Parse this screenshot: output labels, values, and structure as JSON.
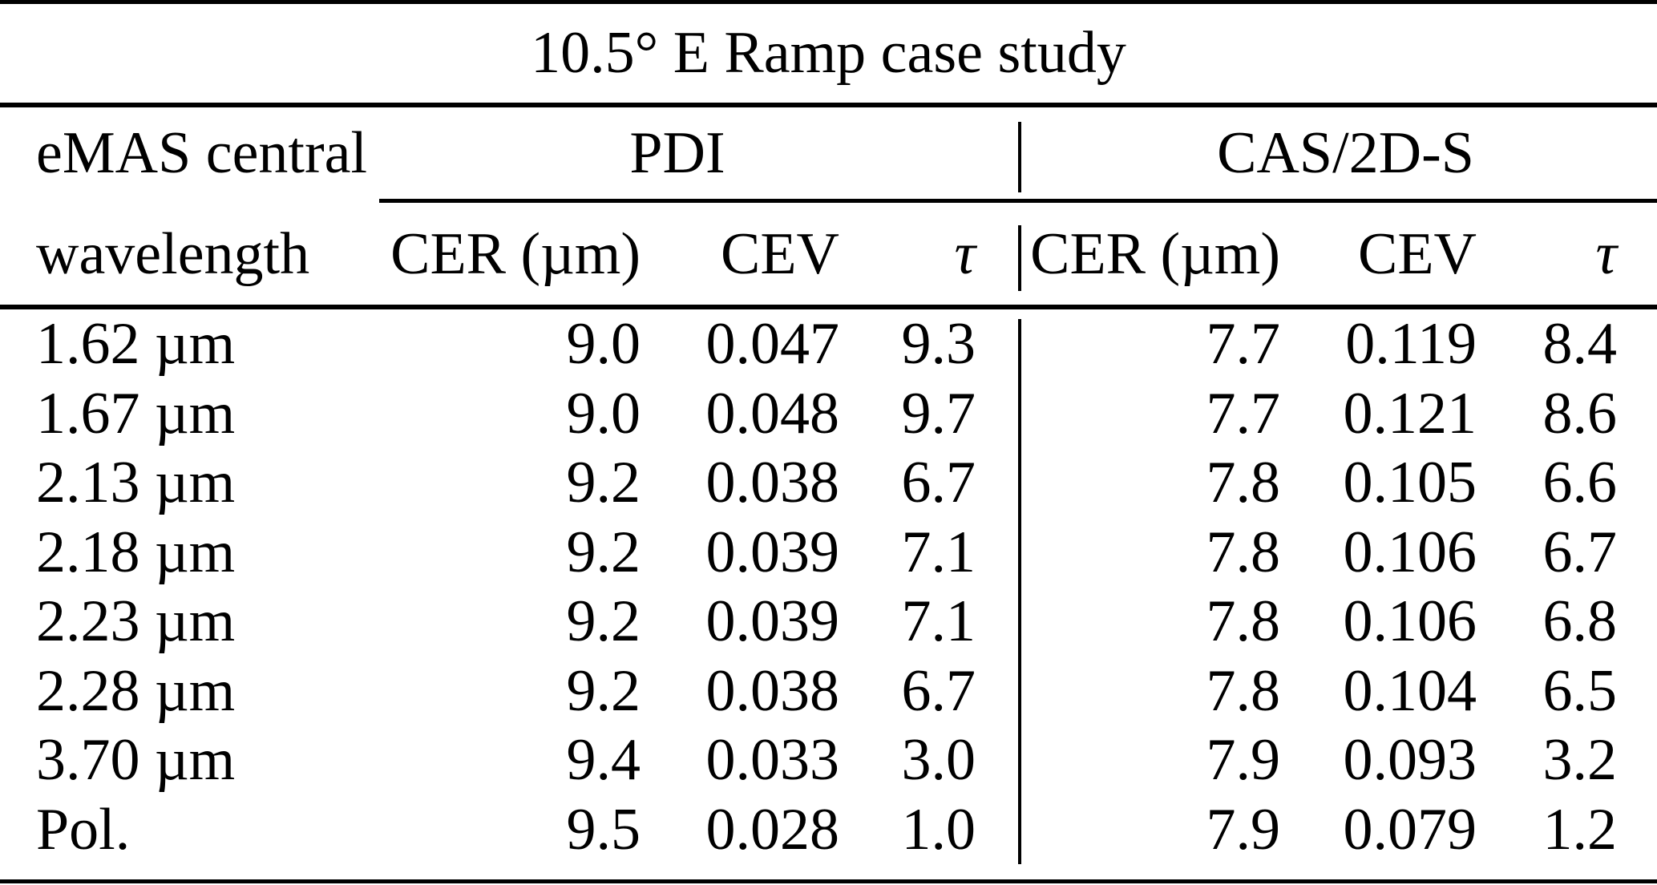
{
  "figure": {
    "title": "10.5° E Ramp case study",
    "stub": {
      "line1": "eMAS central",
      "line2": "wavelength"
    },
    "groups": {
      "pdi": "PDI",
      "cas": "CAS/2D-S"
    },
    "columns": {
      "cer": "CER (µm)",
      "cev": "CEV",
      "tau": "τ"
    },
    "rows": [
      {
        "label": "1.62 µm",
        "cells": [
          "9.0",
          "0.047",
          "9.3",
          "7.7",
          "0.119",
          "8.4"
        ]
      },
      {
        "label": "1.67 µm",
        "cells": [
          "9.0",
          "0.048",
          "9.7",
          "7.7",
          "0.121",
          "8.6"
        ]
      },
      {
        "label": "2.13 µm",
        "cells": [
          "9.2",
          "0.038",
          "6.7",
          "7.8",
          "0.105",
          "6.6"
        ]
      },
      {
        "label": "2.18 µm",
        "cells": [
          "9.2",
          "0.039",
          "7.1",
          "7.8",
          "0.106",
          "6.7"
        ]
      },
      {
        "label": "2.23 µm",
        "cells": [
          "9.2",
          "0.039",
          "7.1",
          "7.8",
          "0.106",
          "6.8"
        ]
      },
      {
        "label": "2.28 µm",
        "cells": [
          "9.2",
          "0.038",
          "6.7",
          "7.8",
          "0.104",
          "6.5"
        ]
      },
      {
        "label": "3.70 µm",
        "cells": [
          "9.4",
          "0.033",
          "3.0",
          "7.9",
          "0.093",
          "3.2"
        ]
      },
      {
        "label": "Pol.",
        "cells": [
          "9.5",
          "0.028",
          "1.0",
          "7.9",
          "0.079",
          "1.2"
        ]
      }
    ]
  }
}
